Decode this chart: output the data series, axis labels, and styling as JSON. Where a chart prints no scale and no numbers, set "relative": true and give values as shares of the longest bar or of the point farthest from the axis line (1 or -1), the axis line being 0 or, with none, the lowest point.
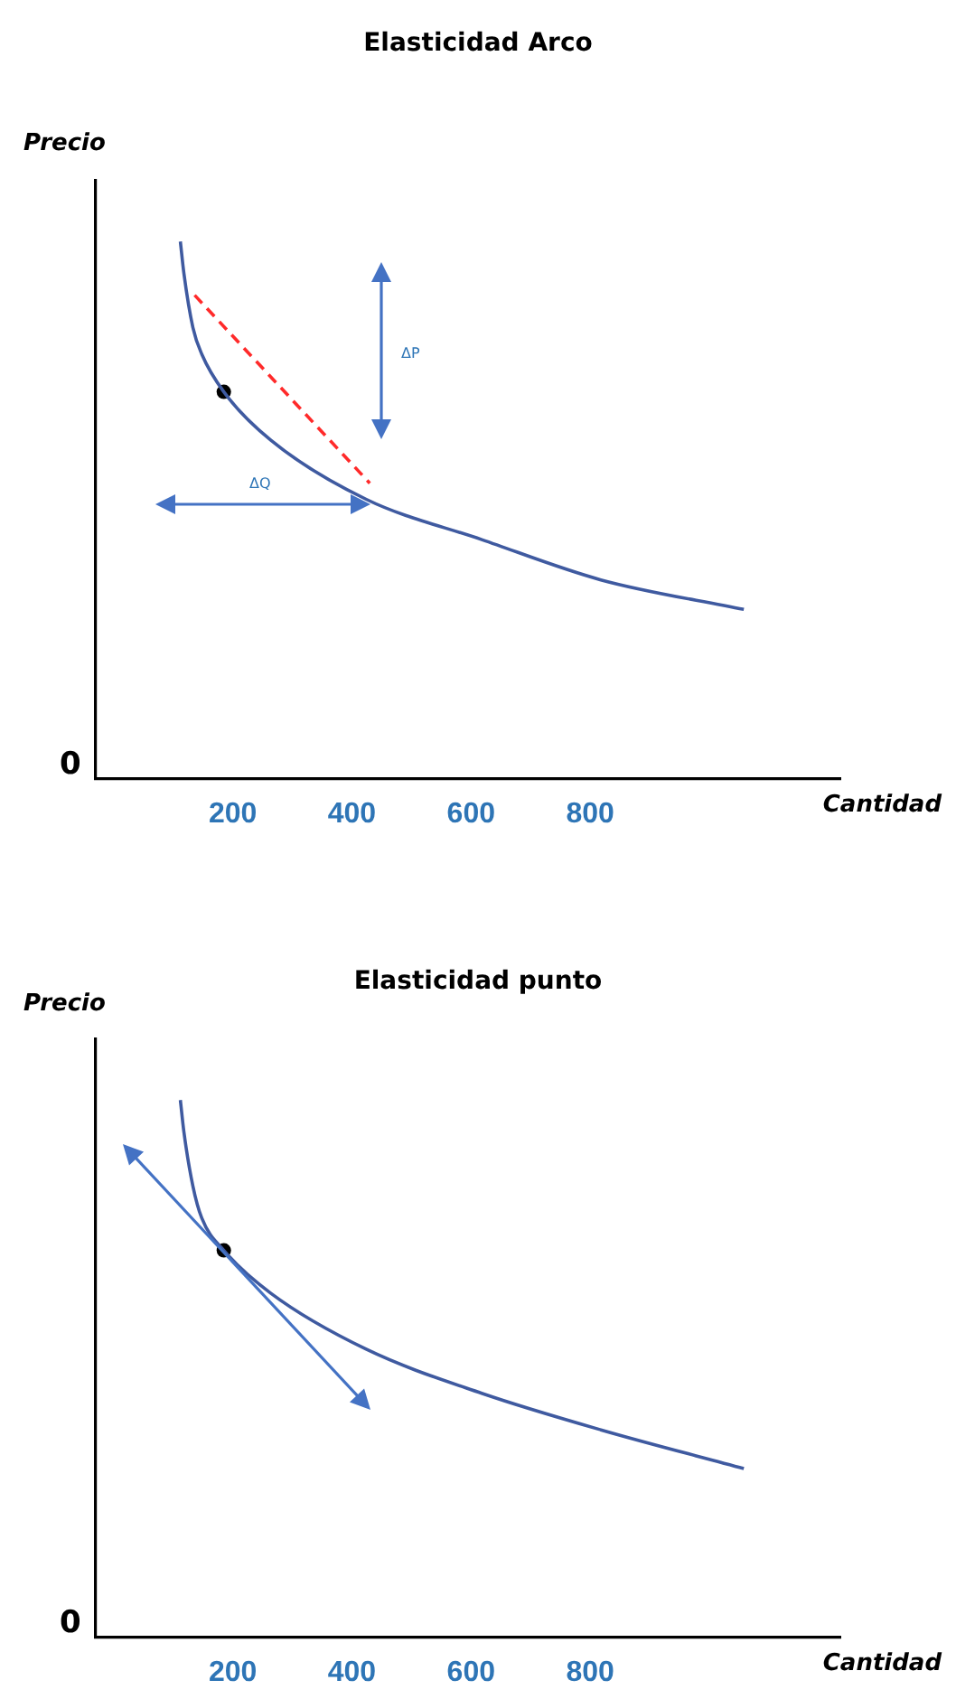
{
  "chart_data": [
    {
      "type": "line",
      "title": "Elasticidad Arco",
      "xlabel": "Cantidad",
      "ylabel": "Precio",
      "relative": true,
      "xlim": [
        -30,
        1220
      ],
      "xticks": [
        200,
        400,
        600,
        800
      ],
      "grid": false,
      "legend": false,
      "annotations": [
        "0",
        "ΔP",
        "ΔQ"
      ],
      "series": [
        {
          "color": "#3f5aa0",
          "x": [
            112,
            118,
            133,
            148,
            185,
            264,
            424,
            618,
            818,
            1058
          ],
          "values": [
            1.0,
            0.94,
            0.84,
            0.79,
            0.72,
            0.63,
            0.52,
            0.445,
            0.37,
            0.315
          ]
        },
        {
          "type": "line",
          "line_style": "dashed",
          "color": "#ff2a2a",
          "x": [
            136,
            430
          ],
          "values": [
            0.9,
            0.55
          ]
        },
        {
          "type": "scatter",
          "marker": "circle",
          "color": "#000000",
          "x": [
            185
          ],
          "values": [
            0.72
          ]
        }
      ]
    },
    {
      "type": "line",
      "title": "Elasticidad punto",
      "xlabel": "Cantidad",
      "ylabel": "Precio",
      "relative": true,
      "xlim": [
        -30,
        1220
      ],
      "xticks": [
        200,
        400,
        600,
        800
      ],
      "grid": false,
      "legend": false,
      "annotations": [
        "0"
      ],
      "series": [
        {
          "color": "#3f5aa0",
          "x": [
            112,
            118,
            133,
            148,
            185,
            264,
            424,
            618,
            818,
            1058
          ],
          "values": [
            1.0,
            0.94,
            0.84,
            0.78,
            0.72,
            0.64,
            0.536,
            0.454,
            0.386,
            0.314
          ]
        },
        {
          "type": "scatter",
          "marker": "circle",
          "color": "#000000",
          "x": [
            185
          ],
          "values": [
            0.72
          ]
        }
      ]
    }
  ]
}
